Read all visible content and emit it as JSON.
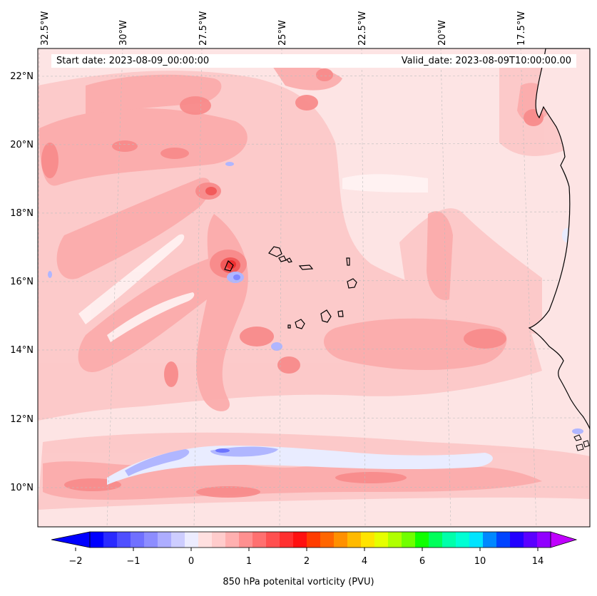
{
  "map": {
    "top_axis_labels": [
      "32.5°W",
      "30°W",
      "27.5°W",
      "25°W",
      "22.5°W",
      "20°W",
      "17.5°W"
    ],
    "left_axis_labels": [
      "22°N",
      "20°N",
      "18°N",
      "16°N",
      "14°N",
      "12°N",
      "10°N"
    ],
    "start_date": "Start date: 2023-08-09_00:00:00",
    "valid_date": "Valid_date: 2023-08-09T10:00:00.00",
    "field_palette": {
      "background": "#fde4e4",
      "low": "#fcc8c8",
      "mid": "#fbaaaa",
      "high": "#f88b8b",
      "peak": "#f25a5a",
      "negative_light": "#e9ecff",
      "negative_mid": "#b0b6ff",
      "negative_strong": "#6c74ff"
    },
    "coastline_color": "#000000"
  },
  "colorbar": {
    "tick_labels": [
      "−2",
      "−1",
      "0",
      "1",
      "2",
      "4",
      "6",
      "10",
      "14"
    ],
    "title": "850 hPa potenital vorticity (PVU)",
    "colors": [
      "#0000ff",
      "#2a2aff",
      "#4f4fff",
      "#7070ff",
      "#8d8dff",
      "#adadff",
      "#cdcdff",
      "#ececff",
      "#ffe0e0",
      "#ffcccc",
      "#ffb0b0",
      "#ff9090",
      "#ff7070",
      "#ff5050",
      "#ff3030",
      "#ff1010",
      "#ff3c00",
      "#ff6600",
      "#ff9000",
      "#ffba00",
      "#ffe400",
      "#e6ff00",
      "#b0ff00",
      "#70ff00",
      "#10ff00",
      "#00ff5a",
      "#00ffaa",
      "#00ffd4",
      "#00e4ff",
      "#0088ff",
      "#0044ff",
      "#2200ff",
      "#5a00ff",
      "#9000ff"
    ],
    "extend_min_color": "#0000ff",
    "extend_max_color": "#c000ff"
  }
}
